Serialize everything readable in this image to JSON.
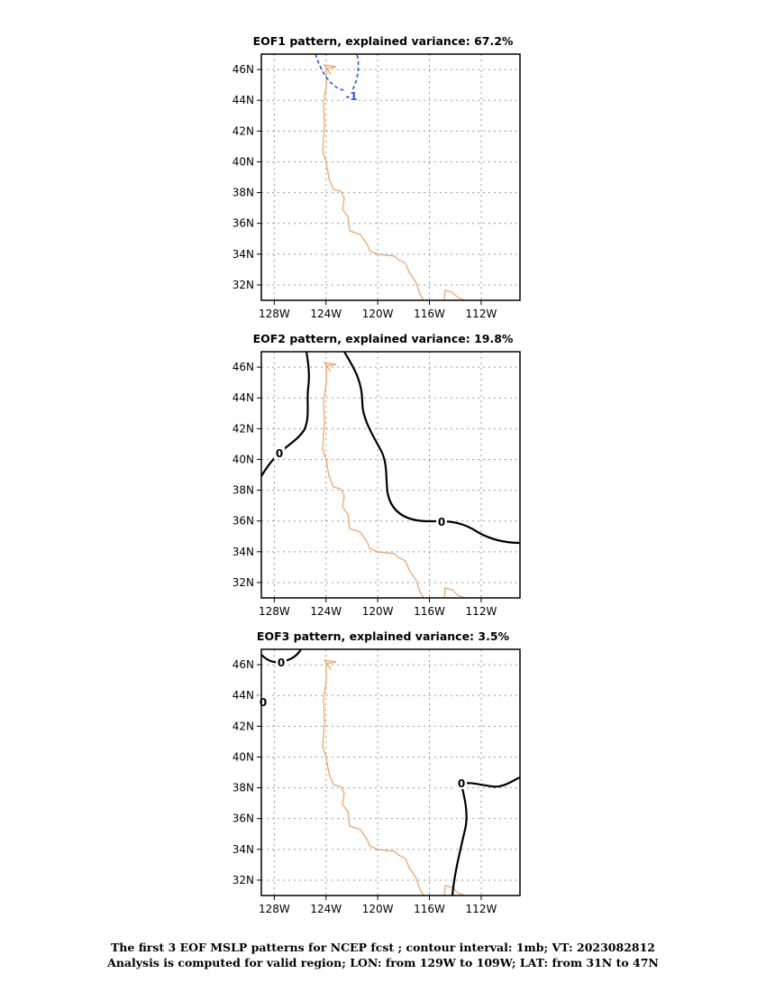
{
  "panels": [
    {
      "title": "EOF1 pattern, explained variance: 67.2%",
      "contour_labels": [
        "-1"
      ]
    },
    {
      "title": "EOF2 pattern, explained variance: 19.8%",
      "contour_labels": [
        "0",
        "0"
      ]
    },
    {
      "title": "EOF3 pattern, explained variance: 3.5%",
      "contour_labels": [
        "0",
        "0",
        "0"
      ]
    }
  ],
  "axes": {
    "lat_labels": [
      "46N",
      "44N",
      "42N",
      "40N",
      "38N",
      "36N",
      "34N",
      "32N"
    ],
    "lon_labels": [
      "128W",
      "124W",
      "120W",
      "116W",
      "112W"
    ]
  },
  "colors": {
    "coastline": "#f0a060",
    "negative_contour": "#2a55e0",
    "zero_contour": "#000000",
    "grid": "#9a9a9a"
  },
  "footer": {
    "line1": "The first 3 EOF MSLP patterns for NCEP fcst ; contour interval: 1mb; VT: 2023082812",
    "line2": "Analysis is computed for valid region; LON: from 129W to 109W; LAT: from 31N to 47N"
  }
}
